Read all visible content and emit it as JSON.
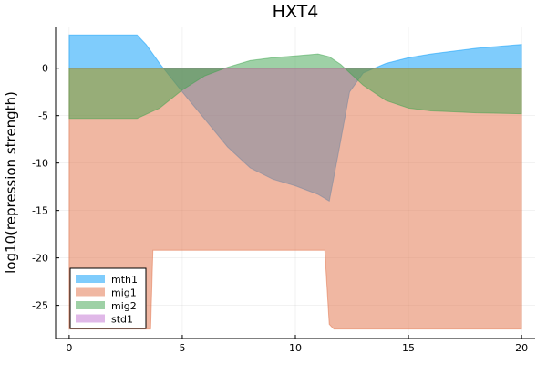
{
  "chart_data": {
    "type": "area",
    "title": "HXT4",
    "xlabel": "",
    "ylabel": "log10(repression strength)",
    "xlim": [
      -0.6,
      20.6
    ],
    "ylim": [
      -28.5,
      4.3
    ],
    "xticks": [
      0,
      5,
      10,
      15,
      20
    ],
    "xtick_labels": [
      "0",
      "5",
      "10",
      "15",
      "20"
    ],
    "yticks": [
      0,
      -5,
      -10,
      -15,
      -20,
      -25
    ],
    "ytick_labels": [
      "0",
      "-5",
      "-10",
      "-15",
      "-20",
      "-25"
    ],
    "grid": true,
    "legend_position": "bottom-left",
    "series": [
      {
        "name": "mth1",
        "color": "#009af9",
        "baseline": 0,
        "x": [
          0,
          3,
          3.4,
          4,
          5,
          6,
          7,
          8,
          9,
          10,
          11,
          11.5,
          11.9,
          12.4,
          13,
          14,
          15,
          16,
          17,
          18,
          19,
          20
        ],
        "y": [
          3.5,
          3.5,
          2.5,
          0.5,
          -2.5,
          -5.4,
          -8.3,
          -10.5,
          -11.7,
          -12.4,
          -13.3,
          -14,
          -9,
          -2.5,
          -0.5,
          0.5,
          1.1,
          1.5,
          1.8,
          2.1,
          2.3,
          2.5
        ]
      },
      {
        "name": "mig1",
        "color": "#e26f46",
        "baseline": 0,
        "x": [
          0,
          3,
          3.6,
          3.7,
          11.3,
          11.5,
          11.7,
          12,
          12.5,
          13,
          13.5,
          14,
          15,
          16,
          17,
          18,
          19,
          20
        ],
        "y": [
          -27.5,
          -27.5,
          -27.5,
          -19.2,
          -19.2,
          -27,
          -27.5,
          -27.5,
          -27.5,
          -27.5,
          -27.5,
          -27.5,
          -27.5,
          -27.5,
          -27.5,
          -27.5,
          -27.5,
          -27.5
        ]
      },
      {
        "name": "mig2",
        "color": "#3da44d",
        "baseline": 0,
        "x": [
          0,
          3,
          4,
          5,
          6,
          7,
          8,
          9,
          10,
          11,
          11.5,
          12,
          13,
          14,
          15,
          16,
          17,
          18,
          19,
          20
        ],
        "y": [
          -5.3,
          -5.3,
          -4.2,
          -2.3,
          -0.8,
          0.1,
          0.8,
          1.1,
          1.3,
          1.5,
          1.2,
          0.4,
          -1.8,
          -3.4,
          -4.2,
          -4.5,
          -4.6,
          -4.7,
          -4.75,
          -4.8
        ]
      },
      {
        "name": "std1",
        "color": "#c271d2",
        "baseline": 0,
        "x": [
          0,
          20
        ],
        "y": [
          0,
          0
        ]
      }
    ]
  }
}
